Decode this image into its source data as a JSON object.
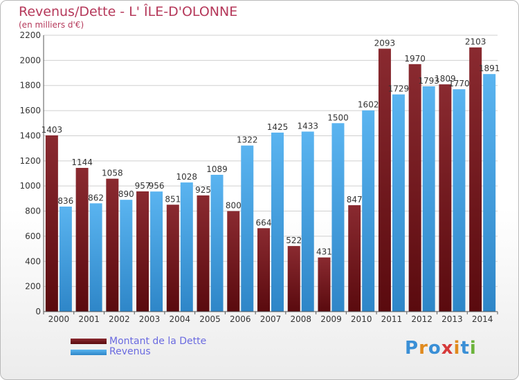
{
  "title": "Revenus/Dette - L' ÎLE-D'OLONNE",
  "subtitle": "(en milliers d'€)",
  "brand": "Proxiti",
  "colors": {
    "debt": "#7a1c22",
    "revenue": "#4ea6e6",
    "title": "#b5385a",
    "legend_text": "#6a6ae0"
  },
  "chart_data": {
    "type": "bar",
    "categories": [
      "2000",
      "2001",
      "2002",
      "2003",
      "2004",
      "2005",
      "2006",
      "2007",
      "2008",
      "2009",
      "2010",
      "2011",
      "2012",
      "2013",
      "2014"
    ],
    "series": [
      {
        "name": "Montant de la Dette",
        "values": [
          1403,
          1144,
          1058,
          957,
          851,
          925,
          800,
          664,
          522,
          431,
          847,
          2093,
          1970,
          1809,
          2103
        ]
      },
      {
        "name": "Revenus",
        "values": [
          836,
          862,
          890,
          956,
          1028,
          1089,
          1322,
          1425,
          1433,
          1500,
          1602,
          1729,
          1793,
          1770,
          1891
        ]
      }
    ],
    "ylim": [
      0,
      2200
    ],
    "yticks": [
      0,
      200,
      400,
      600,
      800,
      1000,
      1200,
      1400,
      1600,
      1800,
      2000,
      2200
    ],
    "grid": true,
    "legend": "bottom-left"
  }
}
